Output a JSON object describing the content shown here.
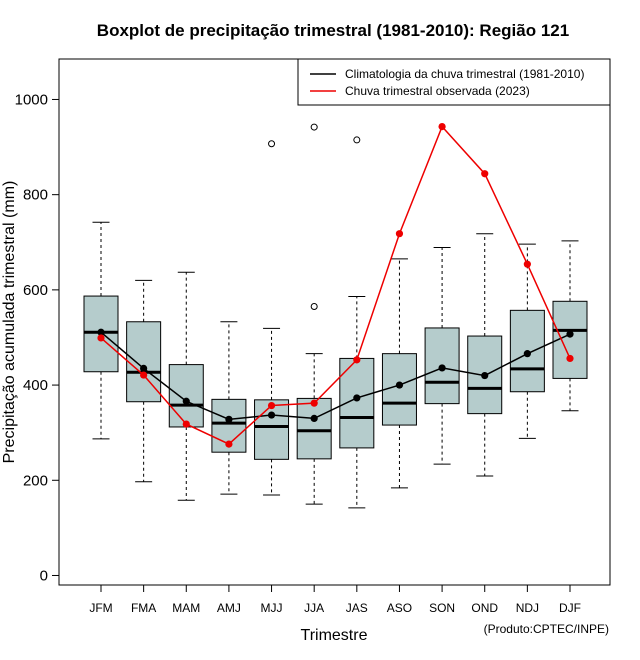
{
  "chart_data": {
    "type": "boxplot",
    "title": "Boxplot de precipitação trimestral (1981-2010): Região 121",
    "xlabel": "Trimestre",
    "ylabel": "Precipitação acumulada trimestral (mm)",
    "ylim": [
      -20,
      1085
    ],
    "yticks": [
      0,
      200,
      400,
      600,
      800,
      1000
    ],
    "categories": [
      "JFM",
      "FMA",
      "MAM",
      "AMJ",
      "MJJ",
      "JJA",
      "JAS",
      "ASO",
      "SON",
      "OND",
      "NDJ",
      "DJF"
    ],
    "boxes": [
      {
        "min": 287,
        "q1": 428,
        "median": 511,
        "q3": 587,
        "max": 742,
        "outliers": []
      },
      {
        "min": 197,
        "q1": 365,
        "median": 427,
        "q3": 533,
        "max": 620,
        "outliers": []
      },
      {
        "min": 158,
        "q1": 312,
        "median": 358,
        "q3": 443,
        "max": 637,
        "outliers": []
      },
      {
        "min": 171,
        "q1": 259,
        "median": 320,
        "q3": 370,
        "max": 533,
        "outliers": []
      },
      {
        "min": 169,
        "q1": 244,
        "median": 313,
        "q3": 369,
        "max": 519,
        "outliers": [
          907
        ]
      },
      {
        "min": 150,
        "q1": 245,
        "median": 304,
        "q3": 372,
        "max": 466,
        "outliers": [
          942,
          565
        ]
      },
      {
        "min": 142,
        "q1": 268,
        "median": 332,
        "q3": 456,
        "max": 586,
        "outliers": [
          915
        ]
      },
      {
        "min": 184,
        "q1": 316,
        "median": 362,
        "q3": 466,
        "max": 665,
        "outliers": []
      },
      {
        "min": 234,
        "q1": 361,
        "median": 406,
        "q3": 520,
        "max": 689,
        "outliers": []
      },
      {
        "min": 209,
        "q1": 340,
        "median": 393,
        "q3": 503,
        "max": 718,
        "outliers": []
      },
      {
        "min": 288,
        "q1": 386,
        "median": 434,
        "q3": 557,
        "max": 696,
        "outliers": []
      },
      {
        "min": 346,
        "q1": 414,
        "median": 515,
        "q3": 576,
        "max": 703,
        "outliers": []
      }
    ],
    "series": [
      {
        "name": "Climatologia da chuva trimestral (1981-2010)",
        "color": "#000000",
        "values": [
          511,
          435,
          366,
          328,
          337,
          330,
          373,
          400,
          436,
          420,
          466,
          507
        ]
      },
      {
        "name": "Chuva trimestral observada (2023)",
        "color": "#ee0000",
        "values": [
          499,
          421,
          318,
          276,
          357,
          362,
          453,
          718,
          943,
          844,
          654,
          456
        ]
      }
    ],
    "legend_position": "top-right",
    "box_color": "#b5cccc",
    "credit": "(Produto:CPTEC/INPE)"
  }
}
